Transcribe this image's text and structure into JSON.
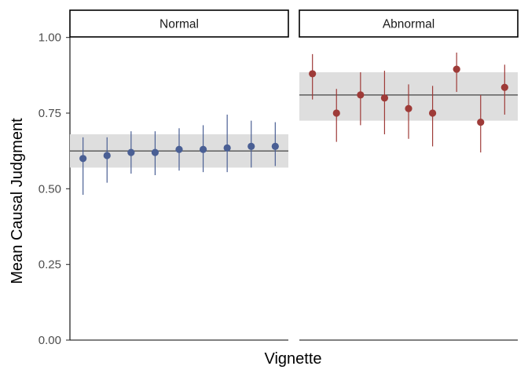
{
  "chart_data": {
    "type": "scatter",
    "facet_by": "condition",
    "xlabel": "Vignette",
    "ylabel": "Mean Causal Judgment",
    "ylim": [
      0,
      1.09
    ],
    "y_ticks": [
      {
        "value": 0,
        "label": "0.00"
      },
      {
        "value": 0.25,
        "label": "0.25"
      },
      {
        "value": 0.5,
        "label": "0.50"
      },
      {
        "value": 0.75,
        "label": "0.75"
      },
      {
        "value": 1.0,
        "label": "1.00"
      }
    ],
    "grid": false,
    "x_tick_labels": false,
    "panels": [
      {
        "label": "Normal",
        "color": "#4A5F94",
        "mean": 0.625,
        "ribbon": [
          0.57,
          0.68
        ],
        "points": [
          {
            "y": 0.6,
            "lo": 0.48,
            "hi": 0.67
          },
          {
            "y": 0.61,
            "lo": 0.52,
            "hi": 0.67
          },
          {
            "y": 0.62,
            "lo": 0.55,
            "hi": 0.69
          },
          {
            "y": 0.62,
            "lo": 0.545,
            "hi": 0.69
          },
          {
            "y": 0.63,
            "lo": 0.56,
            "hi": 0.7
          },
          {
            "y": 0.63,
            "lo": 0.555,
            "hi": 0.71
          },
          {
            "y": 0.635,
            "lo": 0.555,
            "hi": 0.745
          },
          {
            "y": 0.64,
            "lo": 0.57,
            "hi": 0.725
          },
          {
            "y": 0.64,
            "lo": 0.575,
            "hi": 0.72
          }
        ]
      },
      {
        "label": "Abnormal",
        "color": "#9E3B38",
        "mean": 0.81,
        "ribbon": [
          0.725,
          0.885
        ],
        "points": [
          {
            "y": 0.88,
            "lo": 0.795,
            "hi": 0.945
          },
          {
            "y": 0.75,
            "lo": 0.655,
            "hi": 0.83
          },
          {
            "y": 0.81,
            "lo": 0.71,
            "hi": 0.885
          },
          {
            "y": 0.8,
            "lo": 0.68,
            "hi": 0.89
          },
          {
            "y": 0.765,
            "lo": 0.665,
            "hi": 0.845
          },
          {
            "y": 0.75,
            "lo": 0.64,
            "hi": 0.84
          },
          {
            "y": 0.895,
            "lo": 0.82,
            "hi": 0.95
          },
          {
            "y": 0.72,
            "lo": 0.62,
            "hi": 0.81
          },
          {
            "y": 0.835,
            "lo": 0.745,
            "hi": 0.91
          }
        ]
      }
    ]
  }
}
